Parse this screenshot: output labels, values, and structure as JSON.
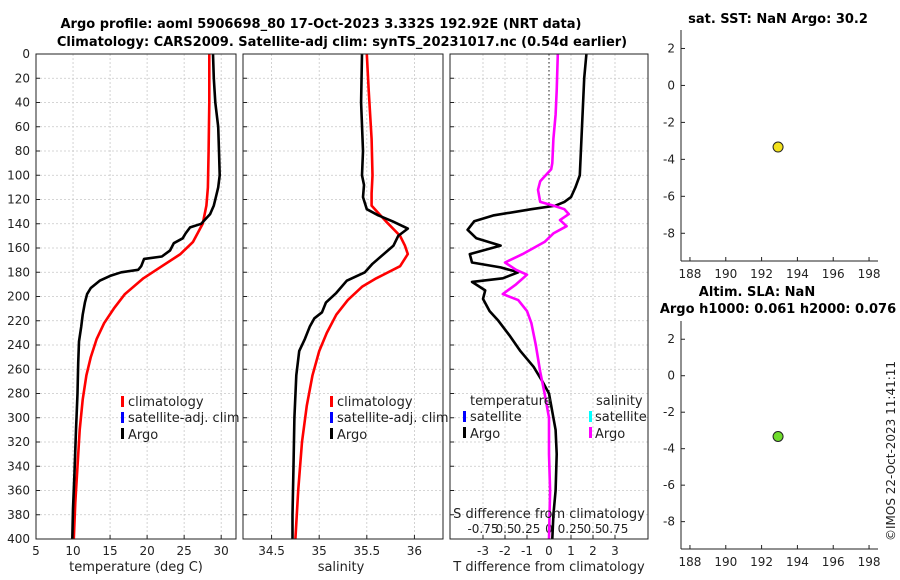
{
  "titles": {
    "line1": "Argo profile: aoml 5906698_80 17-Oct-2023 3.332S 192.92E (NRT data)",
    "line2": "Climatology: CARS2009. Satellite-adj clim: synTS_20231017.nc (0.54d earlier)",
    "sst": "sat. SST: NaN Argo: 30.2",
    "sla1": "Altim. SLA: NaN",
    "sla2": "Argo h1000: 0.061 h2000: 0.076",
    "watermark": "©IMOS 22-Oct-2023 11:41:11"
  },
  "depth_axis": {
    "range": [
      0,
      400
    ],
    "ticks": [
      0,
      20,
      40,
      60,
      80,
      100,
      120,
      140,
      160,
      180,
      200,
      220,
      240,
      260,
      280,
      300,
      320,
      340,
      360,
      380,
      400
    ]
  },
  "colors": {
    "climatology": "#ff0000",
    "satellite": "#0000ff",
    "argo": "#000000",
    "sal_satellite": "#00ffff",
    "sal_argo": "#ff00ff",
    "sst_marker": "#f2e11c",
    "sla_marker": "#6fdc2c"
  },
  "legend_main": [
    "climatology",
    "satellite-adj. clim",
    "Argo"
  ],
  "legend_diff": {
    "temp_header": "temperature",
    "sal_header": "salinity",
    "items": [
      "satellite",
      "Argo"
    ]
  },
  "chart_data": [
    {
      "type": "line",
      "name": "temperature",
      "xlabel": "temperature (deg C)",
      "xlim": [
        5,
        32
      ],
      "xticks": [
        5,
        10,
        15,
        20,
        25,
        30
      ],
      "ylabel": "depth",
      "series": [
        {
          "name": "climatology",
          "points": [
            [
              28.4,
              0
            ],
            [
              28.4,
              40
            ],
            [
              28.3,
              80
            ],
            [
              28.2,
              110
            ],
            [
              28.0,
              125
            ],
            [
              27.5,
              140
            ],
            [
              26.2,
              155
            ],
            [
              24.5,
              165
            ],
            [
              22.0,
              175
            ],
            [
              19.5,
              185
            ],
            [
              17.0,
              198
            ],
            [
              15.5,
              210
            ],
            [
              14.2,
              222
            ],
            [
              13.2,
              235
            ],
            [
              12.4,
              250
            ],
            [
              11.8,
              265
            ],
            [
              11.3,
              285
            ],
            [
              10.9,
              310
            ],
            [
              10.6,
              340
            ],
            [
              10.3,
              370
            ],
            [
              10.1,
              400
            ]
          ]
        },
        {
          "name": "Argo",
          "points": [
            [
              28.9,
              0
            ],
            [
              29.0,
              20
            ],
            [
              29.2,
              40
            ],
            [
              29.6,
              60
            ],
            [
              29.7,
              80
            ],
            [
              29.8,
              100
            ],
            [
              29.6,
              110
            ],
            [
              29.2,
              120
            ],
            [
              29.0,
              125
            ],
            [
              28.5,
              132
            ],
            [
              27.3,
              140
            ],
            [
              25.8,
              143
            ],
            [
              25.2,
              148
            ],
            [
              24.8,
              152
            ],
            [
              23.6,
              156
            ],
            [
              23.1,
              162
            ],
            [
              22.0,
              167
            ],
            [
              19.6,
              169
            ],
            [
              19.2,
              175
            ],
            [
              18.8,
              178
            ],
            [
              16.5,
              180
            ],
            [
              15.0,
              183
            ],
            [
              13.6,
              187
            ],
            [
              12.4,
              193
            ],
            [
              11.9,
              198
            ],
            [
              11.6,
              205
            ],
            [
              11.3,
              215
            ],
            [
              11.1,
              225
            ],
            [
              10.8,
              237
            ],
            [
              10.7,
              255
            ],
            [
              10.6,
              280
            ],
            [
              10.4,
              310
            ],
            [
              10.2,
              345
            ],
            [
              10.0,
              375
            ],
            [
              9.9,
              400
            ]
          ]
        }
      ]
    },
    {
      "type": "line",
      "name": "salinity",
      "xlabel": "salinity",
      "xlim": [
        34.2,
        36.3
      ],
      "xticks": [
        34.5,
        35,
        35.5,
        36
      ],
      "xticklabels": [
        "34.5",
        "35",
        "35.5",
        "36"
      ],
      "series": [
        {
          "name": "climatology",
          "points": [
            [
              35.5,
              0
            ],
            [
              35.52,
              30
            ],
            [
              35.55,
              70
            ],
            [
              35.56,
              100
            ],
            [
              35.55,
              115
            ],
            [
              35.55,
              125
            ],
            [
              35.7,
              138
            ],
            [
              35.85,
              150
            ],
            [
              35.9,
              158
            ],
            [
              35.93,
              165
            ],
            [
              35.85,
              175
            ],
            [
              35.6,
              185
            ],
            [
              35.45,
              192
            ],
            [
              35.3,
              203
            ],
            [
              35.18,
              215
            ],
            [
              35.08,
              230
            ],
            [
              35.0,
              245
            ],
            [
              34.93,
              265
            ],
            [
              34.87,
              290
            ],
            [
              34.82,
              320
            ],
            [
              34.78,
              360
            ],
            [
              34.75,
              400
            ]
          ]
        },
        {
          "name": "Argo",
          "points": [
            [
              35.45,
              0
            ],
            [
              35.44,
              40
            ],
            [
              35.46,
              80
            ],
            [
              35.45,
              100
            ],
            [
              35.47,
              108
            ],
            [
              35.46,
              118
            ],
            [
              35.5,
              128
            ],
            [
              35.62,
              133
            ],
            [
              35.77,
              138
            ],
            [
              35.93,
              144
            ],
            [
              35.83,
              150
            ],
            [
              35.78,
              158
            ],
            [
              35.56,
              173
            ],
            [
              35.48,
              180
            ],
            [
              35.29,
              187
            ],
            [
              35.18,
              197
            ],
            [
              35.07,
              205
            ],
            [
              35.03,
              213
            ],
            [
              34.95,
              218
            ],
            [
              34.9,
              225
            ],
            [
              34.85,
              235
            ],
            [
              34.79,
              245
            ],
            [
              34.76,
              265
            ],
            [
              34.74,
              300
            ],
            [
              34.73,
              340
            ],
            [
              34.72,
              380
            ],
            [
              34.72,
              400
            ]
          ]
        }
      ]
    },
    {
      "type": "line",
      "name": "differences",
      "xlabel": "T difference from climatology",
      "xlim": [
        -4.5,
        4.5
      ],
      "xticks": [
        -3,
        -2,
        -1,
        0,
        1,
        2,
        3
      ],
      "xticklabels": [
        "-3",
        "-2",
        "-1",
        "0",
        "1",
        "2",
        "3"
      ],
      "sec_xlabel": "S difference from climatology",
      "sec_xticklabels": [
        "-0.75",
        "0.5",
        "0.25",
        "0",
        "0.25",
        "0.5",
        "0.75"
      ],
      "series": [
        {
          "name": "temperature Argo",
          "points": [
            [
              1.7,
              0
            ],
            [
              1.6,
              20
            ],
            [
              1.5,
              60
            ],
            [
              1.4,
              100
            ],
            [
              1.2,
              110
            ],
            [
              1.0,
              118
            ],
            [
              0.7,
              122
            ],
            [
              0.3,
              125
            ],
            [
              -0.8,
              128
            ],
            [
              -2.5,
              133
            ],
            [
              -3.4,
              138
            ],
            [
              -3.7,
              145
            ],
            [
              -3.3,
              152
            ],
            [
              -2.2,
              158
            ],
            [
              -3.6,
              165
            ],
            [
              -3.5,
              172
            ],
            [
              -2.2,
              176
            ],
            [
              -1.4,
              180
            ],
            [
              -2.1,
              185
            ],
            [
              -3.5,
              188
            ],
            [
              -2.9,
              195
            ],
            [
              -3.0,
              202
            ],
            [
              -2.7,
              212
            ],
            [
              -2.3,
              220
            ],
            [
              -1.8,
              232
            ],
            [
              -1.3,
              245
            ],
            [
              -0.7,
              258
            ],
            [
              -0.3,
              270
            ],
            [
              0,
              280
            ],
            [
              0.1,
              290
            ],
            [
              0.2,
              300
            ],
            [
              0.3,
              310
            ],
            [
              0.35,
              330
            ],
            [
              0.3,
              360
            ],
            [
              0.2,
              380
            ],
            [
              0.15,
              400
            ]
          ]
        },
        {
          "name": "salinity Argo",
          "points": [
            [
              0.4,
              0
            ],
            [
              0.35,
              30
            ],
            [
              0.3,
              50
            ],
            [
              0.2,
              70
            ],
            [
              0.15,
              90
            ],
            [
              0.1,
              95
            ],
            [
              -0.4,
              105
            ],
            [
              -0.5,
              112
            ],
            [
              -0.4,
              122
            ],
            [
              0.2,
              125
            ],
            [
              0.7,
              128
            ],
            [
              0.9,
              132
            ],
            [
              0.5,
              137
            ],
            [
              0.8,
              142
            ],
            [
              0.2,
              148
            ],
            [
              -0.2,
              155
            ],
            [
              -1.2,
              165
            ],
            [
              -2.0,
              172
            ],
            [
              -1.5,
              178
            ],
            [
              -1.0,
              182
            ],
            [
              -1.5,
              190
            ],
            [
              -2.1,
              198
            ],
            [
              -1.4,
              203
            ],
            [
              -1.0,
              212
            ],
            [
              -0.8,
              222
            ],
            [
              -0.6,
              240
            ],
            [
              -0.4,
              262
            ],
            [
              -0.2,
              280
            ],
            [
              0,
              300
            ],
            [
              0.0,
              330
            ],
            [
              0.05,
              360
            ],
            [
              0,
              400
            ]
          ]
        }
      ]
    },
    {
      "type": "scatter",
      "name": "sst-map",
      "xlim": [
        187.5,
        198.5
      ],
      "ylim": [
        -9.5,
        3
      ],
      "xticks": [
        188,
        190,
        192,
        194,
        196,
        198
      ],
      "yticks": [
        2,
        0,
        -2,
        -4,
        -6,
        -8
      ],
      "points": [
        [
          192.92,
          -3.332
        ]
      ]
    },
    {
      "type": "scatter",
      "name": "sla-map",
      "xlim": [
        187.5,
        198.5
      ],
      "ylim": [
        -9.5,
        3
      ],
      "xticks": [
        188,
        190,
        192,
        194,
        196,
        198
      ],
      "yticks": [
        2,
        0,
        -2,
        -4,
        -6,
        -8
      ],
      "points": [
        [
          192.92,
          -3.332
        ]
      ]
    }
  ]
}
